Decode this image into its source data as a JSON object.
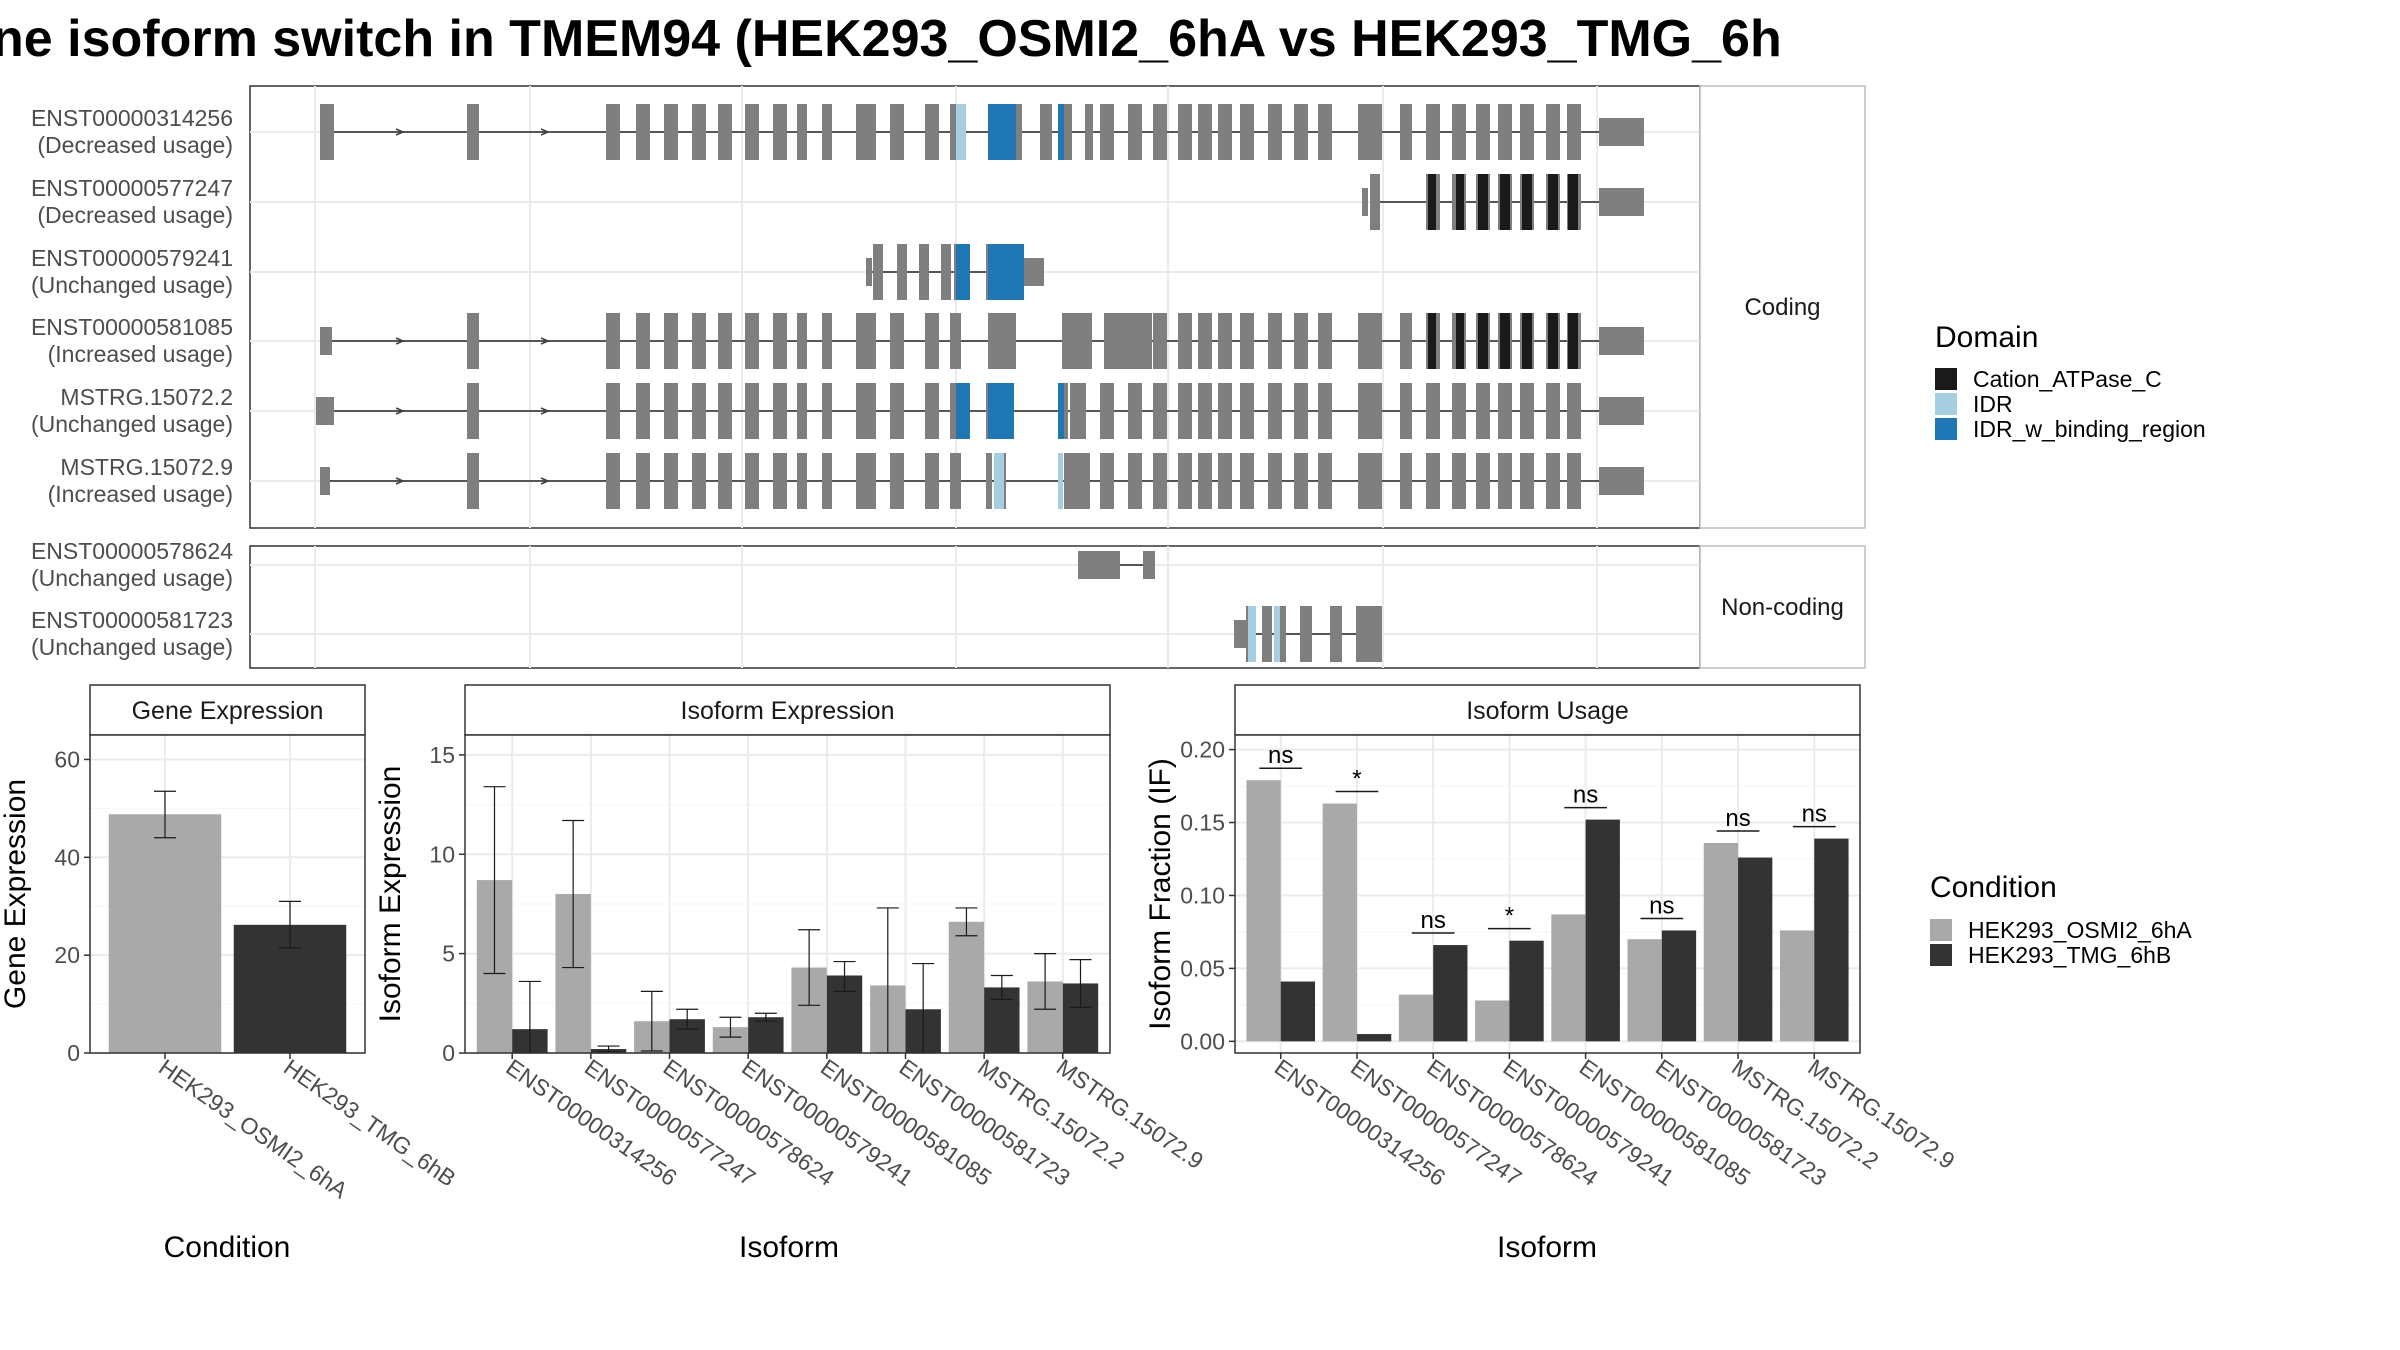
{
  "title": "ne isoform switch in TMEM94 (HEK293_OSMI2_6hA vs HEK293_TMG_6h",
  "structure": {
    "panels": [
      {
        "label": "Coding",
        "isoforms": [
          {
            "id": "ENST00000314256",
            "usage": "(Decreased usage)"
          },
          {
            "id": "ENST00000577247",
            "usage": "(Decreased usage)"
          },
          {
            "id": "ENST00000579241",
            "usage": "(Unchanged usage)"
          },
          {
            "id": "ENST00000581085",
            "usage": "(Increased usage)"
          },
          {
            "id": "MSTRG.15072.2",
            "usage": "(Unchanged usage)"
          },
          {
            "id": "MSTRG.15072.9",
            "usage": "(Increased usage)"
          }
        ]
      },
      {
        "label": "Non-coding",
        "isoforms": [
          {
            "id": "ENST00000578624",
            "usage": "(Unchanged usage)"
          },
          {
            "id": "ENST00000581723",
            "usage": "(Unchanged usage)"
          }
        ]
      }
    ],
    "domain_legend": {
      "title": "Domain",
      "items": [
        {
          "label": "Cation_ATPase_C",
          "color": "#1a1a1a"
        },
        {
          "label": "IDR",
          "color": "#a6cee3"
        },
        {
          "label": "IDR_w_binding_region",
          "color": "#1f78b4"
        }
      ]
    },
    "colors": {
      "exon": "#7f7f7f",
      "intron": "#404040"
    }
  },
  "condition_legend": {
    "title": "Condition",
    "items": [
      {
        "label": "HEK293_OSMI2_6hA",
        "color": "#a9a9a9"
      },
      {
        "label": "HEK293_TMG_6hB",
        "color": "#333333"
      }
    ]
  },
  "chart_data": [
    {
      "type": "bar",
      "title": "Gene Expression",
      "xlabel": "Condition",
      "ylabel": "Gene Expression",
      "ylim": [
        0,
        65
      ],
      "yticks": [
        0,
        20,
        40,
        60
      ],
      "categories": [
        "HEK293_OSMI2_6hA",
        "HEK293_TMG_6hB"
      ],
      "values": [
        48.8,
        26.2
      ],
      "errors": [
        [
          44,
          53.5
        ],
        [
          21.5,
          31
        ]
      ]
    },
    {
      "type": "bar",
      "title": "Isoform Expression",
      "xlabel": "Isoform",
      "ylabel": "Isoform Expression",
      "ylim": [
        0,
        16
      ],
      "yticks": [
        0,
        5,
        10,
        15
      ],
      "categories": [
        "ENST00000314256",
        "ENST00000577247",
        "ENST00000578624",
        "ENST00000579241",
        "ENST00000581085",
        "ENST00000581723",
        "MSTRG.15072.2",
        "MSTRG.15072.9"
      ],
      "series": [
        {
          "name": "HEK293_OSMI2_6hA",
          "values": [
            8.7,
            8.0,
            1.6,
            1.3,
            4.3,
            3.4,
            6.6,
            3.6
          ],
          "errors": [
            [
              4.0,
              13.4
            ],
            [
              4.3,
              11.7
            ],
            [
              0.1,
              3.1
            ],
            [
              0.8,
              1.8
            ],
            [
              2.4,
              6.2
            ],
            [
              0,
              7.3
            ],
            [
              5.9,
              7.3
            ],
            [
              2.2,
              5.0
            ]
          ]
        },
        {
          "name": "HEK293_TMG_6hB",
          "values": [
            1.2,
            0.2,
            1.7,
            1.8,
            3.9,
            2.2,
            3.3,
            3.5
          ],
          "errors": [
            [
              0,
              3.6
            ],
            [
              0.05,
              0.35
            ],
            [
              1.2,
              2.2
            ],
            [
              1.6,
              2.0
            ],
            [
              3.1,
              4.6
            ],
            [
              0,
              4.5
            ],
            [
              2.7,
              3.9
            ],
            [
              2.3,
              4.7
            ]
          ]
        }
      ]
    },
    {
      "type": "bar",
      "title": "Isoform Usage",
      "xlabel": "Isoform",
      "ylabel": "Isoform Fraction (IF)",
      "ylim": [
        -0.008,
        0.21
      ],
      "yticks": [
        0.0,
        0.05,
        0.1,
        0.15,
        0.2
      ],
      "ytick_labels": [
        "0.00",
        "0.05",
        "0.10",
        "0.15",
        "0.20"
      ],
      "categories": [
        "ENST00000314256",
        "ENST00000577247",
        "ENST00000578624",
        "ENST00000579241",
        "ENST00000581085",
        "ENST00000581723",
        "MSTRG.15072.2",
        "MSTRG.15072.9"
      ],
      "series": [
        {
          "name": "HEK293_OSMI2_6hA",
          "values": [
            0.179,
            0.163,
            0.032,
            0.028,
            0.087,
            0.07,
            0.136,
            0.076
          ]
        },
        {
          "name": "HEK293_TMG_6hB",
          "values": [
            0.041,
            0.005,
            0.066,
            0.069,
            0.152,
            0.076,
            0.126,
            0.139
          ]
        }
      ],
      "significance": [
        "ns",
        "*",
        "ns",
        "*",
        "ns",
        "ns",
        "ns",
        "ns"
      ]
    }
  ]
}
